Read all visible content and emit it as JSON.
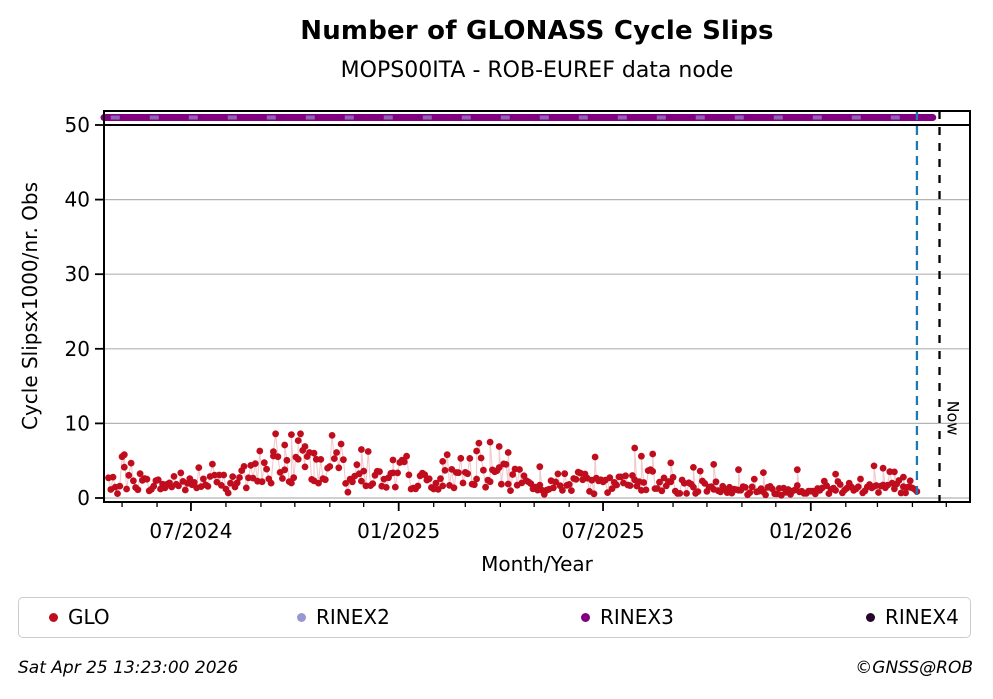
{
  "header": {
    "title": "Number of GLONASS Cycle Slips",
    "subtitle": "MOPS00ITA - ROB-EUREF data node"
  },
  "legend": {
    "items": [
      {
        "label": "GLO",
        "color": "#c00d1e"
      },
      {
        "label": "RINEX2",
        "color": "#9898d0"
      },
      {
        "label": "RINEX3",
        "color": "#800080"
      },
      {
        "label": "RINEX4",
        "color": "#26062a"
      }
    ]
  },
  "footer": {
    "timestamp": "Sat Apr 25 13:23:00 2026",
    "credit": "©GNSS@ROB"
  },
  "chart_data": {
    "type": "scatter",
    "title": "Number of GLONASS Cycle Slips",
    "subtitle": "MOPS00ITA - ROB-EUREF data node",
    "xlabel": "Month/Year",
    "ylabel": "Cycle Slipsx1000/nr. Obs",
    "x_start_date": "2024-04-15",
    "x_end_day": 767,
    "ylim": [
      -0.6,
      51.9
    ],
    "yticks": [
      0,
      10,
      20,
      30,
      40,
      50
    ],
    "xticks_major": [
      {
        "day": 77,
        "label": "07/2024"
      },
      {
        "day": 261,
        "label": "01/2025"
      },
      {
        "day": 442,
        "label": "07/2025"
      },
      {
        "day": 626,
        "label": "01/2026"
      }
    ],
    "xticks_minor_days": [
      16,
      47,
      77,
      108,
      139,
      169,
      200,
      230,
      261,
      292,
      320,
      351,
      381,
      412,
      442,
      473,
      504,
      534,
      565,
      595,
      626,
      657,
      685,
      716,
      746
    ],
    "grid": {
      "horizontal": true,
      "values": [
        0,
        10,
        20,
        30,
        40
      ],
      "color": "#b3b3b3"
    },
    "threshold_line": {
      "value": 50,
      "color": "#000000"
    },
    "series": [
      {
        "name": "GLO",
        "type": "scatter-daily",
        "color": "#c00d1e",
        "day_range": [
          4,
          720
        ],
        "step_days": 2,
        "marker_radius": 3.4,
        "value_range_typical": [
          0.2,
          8.5
        ],
        "envelope_mean": [
          [
            4,
            2.4
          ],
          [
            20,
            2.1
          ],
          [
            40,
            1.8
          ],
          [
            60,
            1.6
          ],
          [
            80,
            1.8
          ],
          [
            100,
            2.2
          ],
          [
            120,
            2.7
          ],
          [
            140,
            3.4
          ],
          [
            155,
            4.1
          ],
          [
            168,
            4.7
          ],
          [
            180,
            4.3
          ],
          [
            195,
            3.7
          ],
          [
            215,
            3.1
          ],
          [
            235,
            2.7
          ],
          [
            255,
            2.3
          ],
          [
            275,
            2.2
          ],
          [
            295,
            2.4
          ],
          [
            315,
            2.7
          ],
          [
            330,
            3.0
          ],
          [
            345,
            3.2
          ],
          [
            360,
            2.8
          ],
          [
            378,
            1.9
          ],
          [
            395,
            1.4
          ],
          [
            410,
            1.5
          ],
          [
            425,
            1.7
          ],
          [
            445,
            1.8
          ],
          [
            465,
            2.1
          ],
          [
            480,
            2.0
          ],
          [
            500,
            1.8
          ],
          [
            520,
            1.6
          ],
          [
            540,
            1.5
          ],
          [
            560,
            1.25
          ],
          [
            580,
            1.1
          ],
          [
            600,
            1.0
          ],
          [
            620,
            1.0
          ],
          [
            640,
            0.95
          ],
          [
            660,
            1.1
          ],
          [
            680,
            1.5
          ],
          [
            695,
            1.5
          ],
          [
            708,
            1.1
          ],
          [
            720,
            0.8
          ]
        ],
        "spike_points": [
          [
            18,
            5.8
          ],
          [
            150,
            6.2
          ],
          [
            160,
            7.1
          ],
          [
            166,
            8.5
          ],
          [
            172,
            7.7
          ],
          [
            178,
            6.9
          ],
          [
            186,
            6.0
          ],
          [
            228,
            6.5
          ],
          [
            256,
            5.1
          ],
          [
            300,
            4.9
          ],
          [
            330,
            6.3
          ],
          [
            342,
            7.5
          ],
          [
            350,
            6.9
          ],
          [
            358,
            6.1
          ],
          [
            386,
            4.2
          ],
          [
            435,
            5.5
          ],
          [
            470,
            6.7
          ],
          [
            476,
            5.6
          ],
          [
            486,
            5.9
          ],
          [
            502,
            4.7
          ],
          [
            522,
            4.1
          ],
          [
            540,
            4.5
          ],
          [
            562,
            3.8
          ],
          [
            584,
            3.4
          ],
          [
            614,
            3.8
          ],
          [
            648,
            3.2
          ],
          [
            682,
            4.3
          ],
          [
            690,
            4.0
          ],
          [
            700,
            3.5
          ],
          [
            708,
            2.8
          ],
          [
            714,
            2.3
          ]
        ],
        "jitter_seed": 7
      },
      {
        "name": "RINEX2",
        "type": "line",
        "color": "#9898d0",
        "value": 51,
        "day_range": [
          6,
          730
        ]
      },
      {
        "name": "RINEX3",
        "type": "line",
        "color": "#800080",
        "value": 51,
        "day_range": [
          0,
          734
        ]
      },
      {
        "name": "RINEX4",
        "type": "line",
        "color": "#26062a",
        "value": null,
        "day_range": null
      }
    ],
    "vlines": [
      {
        "name": "last-data",
        "day": 720,
        "color": "#1f77b4",
        "dash": "9 6",
        "label": ""
      },
      {
        "name": "now",
        "day": 740,
        "color": "#000000",
        "dash": "8 8",
        "label": "Now"
      }
    ],
    "legend_position": "bottom",
    "grid_on": true
  }
}
